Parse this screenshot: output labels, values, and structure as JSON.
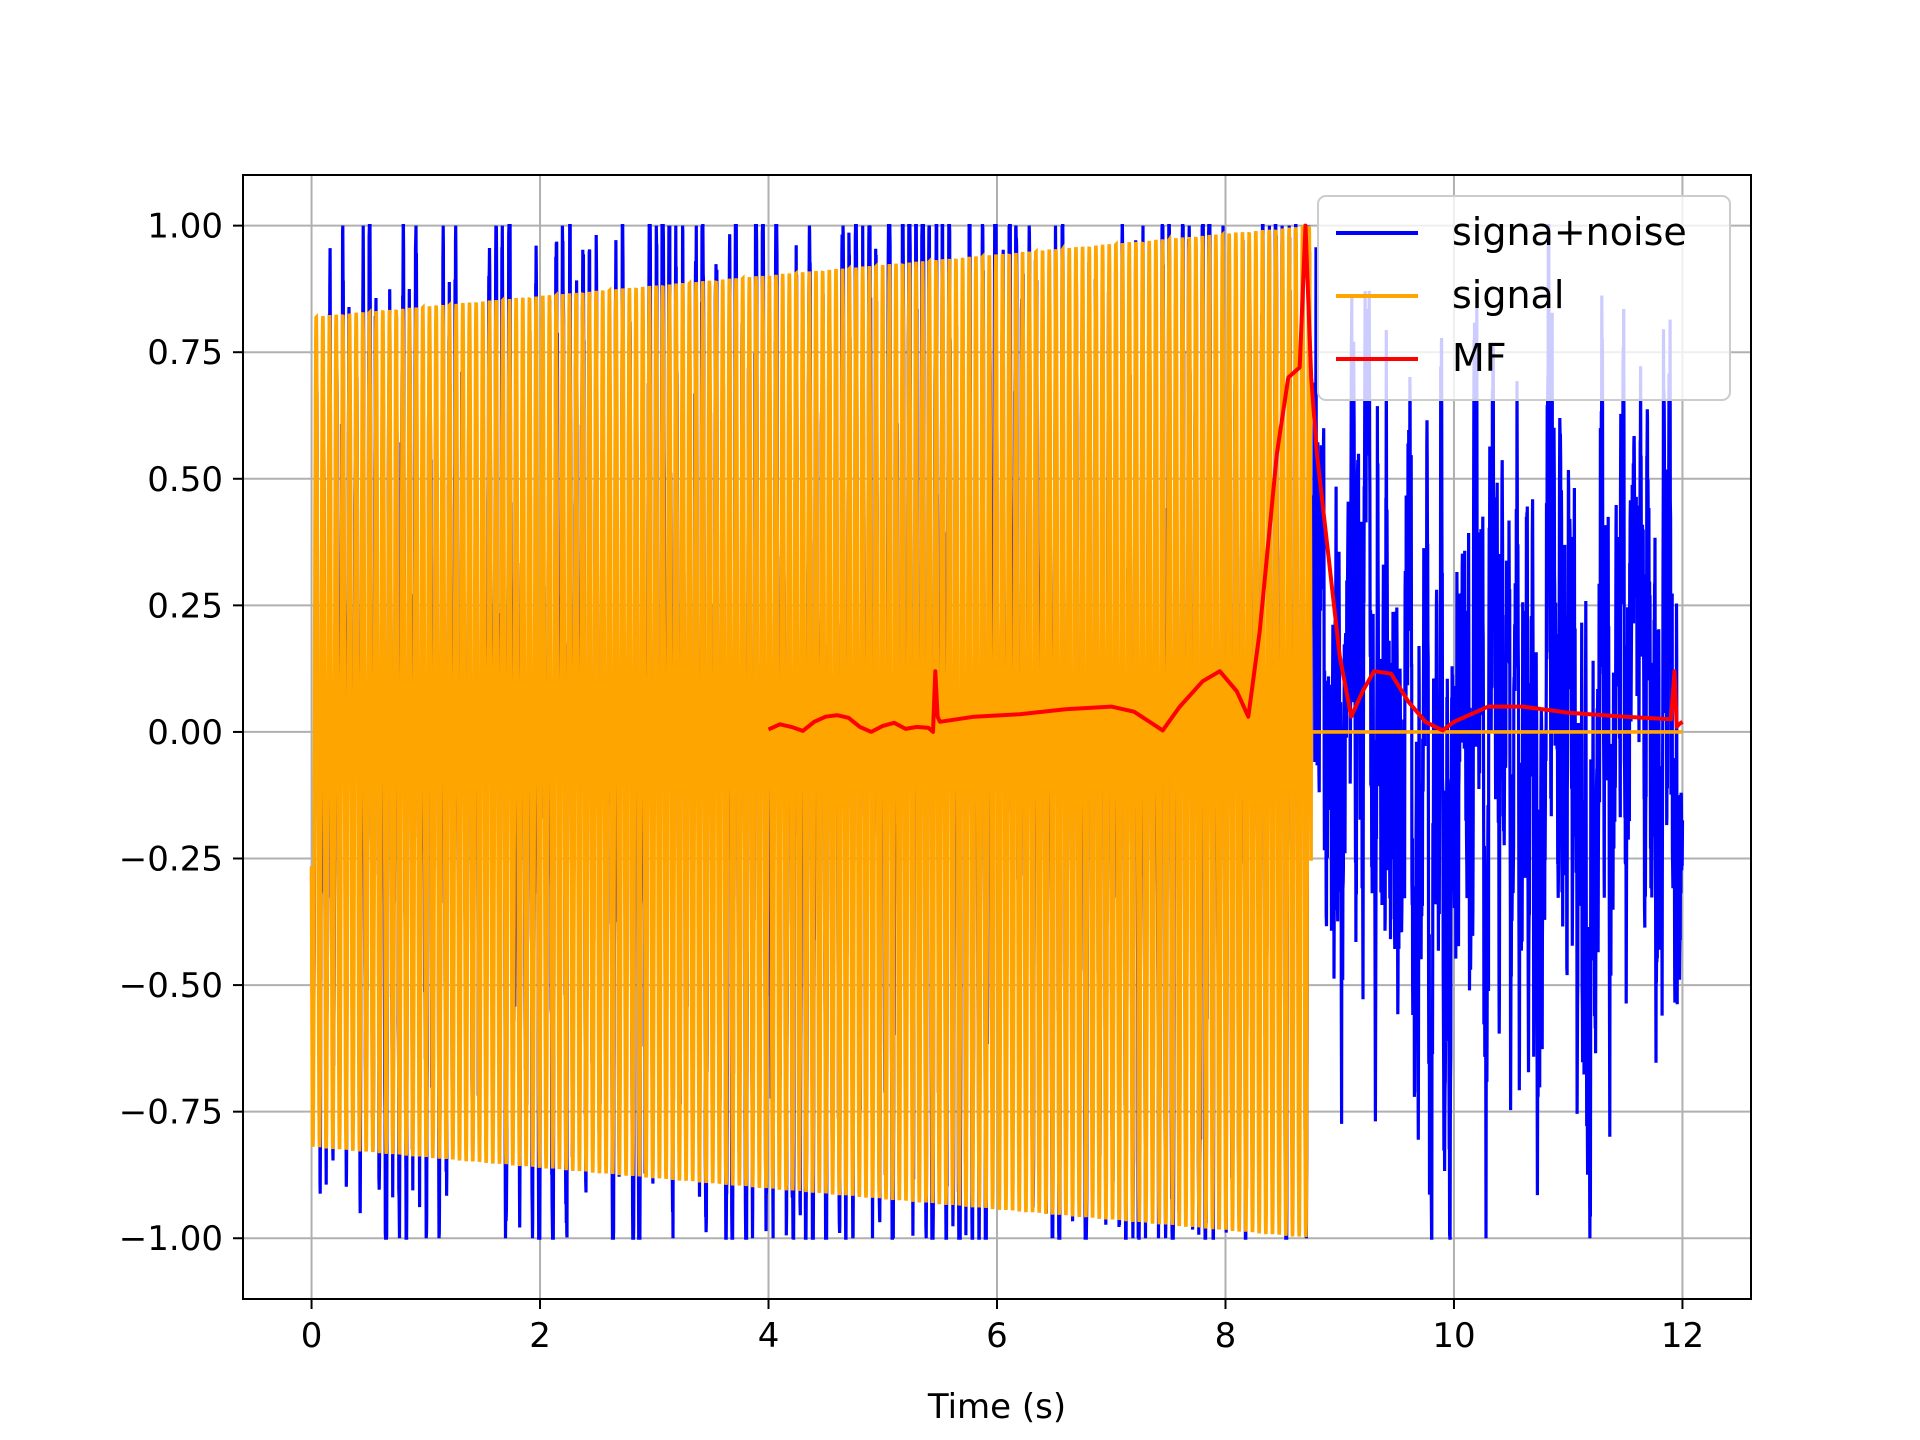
{
  "chart_data": {
    "type": "line",
    "title": "",
    "xlabel": "Time (s)",
    "ylabel": "",
    "xlim": [
      -0.6,
      12.6
    ],
    "ylim": [
      -1.12,
      1.1
    ],
    "x_ticks": [
      0,
      2,
      4,
      6,
      8,
      10,
      12
    ],
    "x_tick_labels": [
      "0",
      "2",
      "4",
      "6",
      "8",
      "10",
      "12"
    ],
    "y_ticks": [
      -1.0,
      -0.75,
      -0.5,
      -0.25,
      0.0,
      0.25,
      0.5,
      0.75,
      1.0
    ],
    "y_tick_labels": [
      "−1.00",
      "−0.75",
      "−0.50",
      "−0.25",
      "0.00",
      "0.25",
      "0.50",
      "0.75",
      "1.00"
    ],
    "grid": true,
    "legend_position": "top-right",
    "series": [
      {
        "name": "signa+noise",
        "color": "#0000ff",
        "description_points": {
          "x_range": [
            0,
            12
          ],
          "amplitude_envelope": [
            [
              0,
              0.83
            ],
            [
              2.2,
              0.9
            ],
            [
              5,
              1.0
            ],
            [
              8.75,
              1.0
            ],
            [
              9.5,
              0.9
            ],
            [
              12,
              0.55
            ]
          ]
        }
      },
      {
        "name": "signal",
        "color": "#ffa500",
        "description_points": {
          "x_range": [
            0,
            12
          ],
          "chirp_start": 0,
          "chirp_end": 8.75,
          "amplitude_start": 0.82,
          "amplitude_end": 1.0,
          "cycles": 150,
          "after_end_value": 0.0
        }
      },
      {
        "name": "MF",
        "color": "#ff0000",
        "x": [
          4.0,
          4.1,
          4.2,
          4.3,
          4.4,
          4.5,
          4.6,
          4.7,
          4.8,
          4.9,
          5.0,
          5.1,
          5.2,
          5.3,
          5.4,
          5.44,
          5.46,
          5.48,
          5.5,
          5.8,
          6.2,
          6.6,
          7.0,
          7.2,
          7.45,
          7.6,
          7.8,
          7.95,
          8.1,
          8.2,
          8.3,
          8.45,
          8.55,
          8.65,
          8.7,
          8.75,
          8.8,
          8.9,
          9.0,
          9.1,
          9.2,
          9.3,
          9.45,
          9.6,
          9.75,
          9.9,
          10.0,
          10.3,
          10.6,
          11.0,
          11.5,
          11.9,
          11.93,
          11.95,
          11.97,
          12.0
        ],
        "y": [
          0.005,
          0.015,
          0.01,
          0.002,
          0.02,
          0.03,
          0.033,
          0.028,
          0.01,
          0.0,
          0.012,
          0.018,
          0.006,
          0.01,
          0.008,
          0.0,
          0.12,
          0.03,
          0.02,
          0.03,
          0.035,
          0.045,
          0.05,
          0.04,
          0.003,
          0.05,
          0.1,
          0.12,
          0.08,
          0.03,
          0.2,
          0.55,
          0.7,
          0.72,
          1.0,
          0.7,
          0.55,
          0.35,
          0.15,
          0.03,
          0.08,
          0.12,
          0.115,
          0.06,
          0.02,
          0.003,
          0.02,
          0.05,
          0.05,
          0.038,
          0.03,
          0.025,
          0.12,
          0.01,
          0.015,
          0.02
        ]
      }
    ]
  }
}
